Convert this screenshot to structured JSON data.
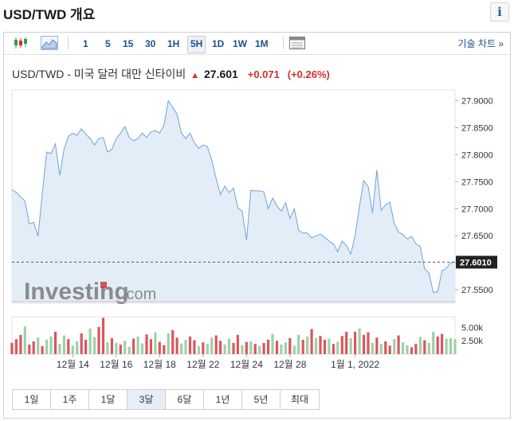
{
  "page": {
    "title": "USD/TWD 개요",
    "info_icon": "i"
  },
  "toolbar": {
    "icons": [
      "candlestick-icon",
      "area-chart-icon"
    ],
    "intervals": [
      "1",
      "5",
      "15",
      "30",
      "1H",
      "5H",
      "1D",
      "1W",
      "1M"
    ],
    "active_interval": "5H",
    "table_icon": "table-icon",
    "tech_chart_label": "기술 차트 »"
  },
  "quote": {
    "pair": "USD/TWD - 미국 달러 대만 신타이비",
    "arrow": "▲",
    "price": "27.601",
    "change": "+0.071",
    "change_pct": "(+0.26%)",
    "direction_color": "#d32f2f"
  },
  "watermark": {
    "brand": "Investing",
    "suffix": ".com"
  },
  "chart_data": {
    "type": "area",
    "colors": {
      "line": "#6fa3d8",
      "fill": "#e3edf7",
      "up": "#9fd0a8",
      "down": "#d9575e"
    },
    "ylim": [
      27.525,
      27.92
    ],
    "y_ticks": [
      "27.9000",
      "27.8500",
      "27.8000",
      "27.7500",
      "27.7000",
      "27.6500",
      "27.6000",
      "27.5500"
    ],
    "y_tick_values": [
      27.9,
      27.85,
      27.8,
      27.75,
      27.7,
      27.65,
      27.6,
      27.55
    ],
    "last_value_label": "27.6010",
    "last_value": 27.601,
    "x_labels": [
      "12월 14",
      "12월 16",
      "12월 18",
      "12월 22",
      "12월 24",
      "12월 28",
      "1월 1, 2022"
    ],
    "x_label_index": [
      14,
      24,
      34,
      44,
      54,
      64,
      79
    ],
    "values": [
      27.735,
      27.73,
      27.722,
      27.714,
      27.672,
      27.675,
      27.649,
      27.73,
      27.805,
      27.802,
      27.82,
      27.762,
      27.81,
      27.834,
      27.84,
      27.836,
      27.848,
      27.838,
      27.83,
      27.818,
      27.83,
      27.832,
      27.805,
      27.81,
      27.83,
      27.84,
      27.852,
      27.832,
      27.826,
      27.83,
      27.84,
      27.832,
      27.842,
      27.845,
      27.84,
      27.855,
      27.9,
      27.888,
      27.875,
      27.84,
      27.83,
      27.84,
      27.822,
      27.812,
      27.818,
      27.815,
      27.79,
      27.756,
      27.726,
      27.742,
      27.73,
      27.738,
      27.702,
      27.695,
      27.642,
      27.734,
      27.733,
      27.733,
      27.731,
      27.7,
      27.72,
      27.705,
      27.696,
      27.711,
      27.682,
      27.7,
      27.66,
      27.655,
      27.655,
      27.646,
      27.65,
      27.653,
      27.647,
      27.64,
      27.635,
      27.62,
      27.64,
      27.632,
      27.616,
      27.65,
      27.705,
      27.752,
      27.741,
      27.692,
      27.772,
      27.697,
      27.707,
      27.712,
      27.673,
      27.657,
      27.652,
      27.644,
      27.649,
      27.635,
      27.63,
      27.589,
      27.581,
      27.545,
      27.546,
      27.585,
      27.59,
      27.6,
      27.601
    ],
    "volume_ticks": [
      "5.00k",
      "2.50k"
    ],
    "volume_tick_values": [
      5000,
      2500
    ],
    "volume_max": 7000,
    "volume": [
      2100,
      2800,
      3600,
      5200,
      1800,
      2400,
      3100,
      1500,
      2700,
      3300,
      4200,
      1900,
      3500,
      2800,
      1600,
      2400,
      3900,
      2700,
      4800,
      3200,
      5100,
      6800,
      2200,
      3000,
      2100,
      1800,
      2500,
      1400,
      2900,
      3300,
      2000,
      3700,
      2800,
      4100,
      2300,
      1700,
      3900,
      4500,
      3100,
      2000,
      2700,
      3300,
      2600,
      1500,
      2200,
      1900,
      3100,
      3500,
      2500,
      1800,
      2900,
      2100,
      3600,
      1700,
      2300,
      2400,
      1900,
      1500,
      2100,
      2700,
      3800,
      2500,
      1800,
      2200,
      3000,
      1600,
      3600,
      2700,
      3300,
      4700,
      3000,
      3400,
      2700,
      2900,
      1900,
      2300,
      3400,
      4200,
      3000,
      4200,
      4800,
      3600,
      4100,
      2100,
      3100,
      1900,
      2400,
      1600,
      2800,
      3500,
      2200,
      1700,
      1300,
      1900,
      3200,
      2600,
      2100,
      4200,
      3300,
      3800,
      2900,
      3000,
      2800
    ],
    "volume_dir": [
      "d",
      "d",
      "d",
      "u",
      "d",
      "d",
      "u",
      "d",
      "u",
      "u",
      "d",
      "u",
      "u",
      "d",
      "u",
      "u",
      "d",
      "d",
      "u",
      "u",
      "d",
      "d",
      "u",
      "d",
      "u",
      "d",
      "u",
      "u",
      "d",
      "u",
      "u",
      "d",
      "d",
      "u",
      "d",
      "d",
      "u",
      "d",
      "d",
      "u",
      "u",
      "d",
      "d",
      "u",
      "d",
      "u",
      "u",
      "d",
      "d",
      "u",
      "u",
      "d",
      "d",
      "u",
      "d",
      "u",
      "d",
      "u",
      "d",
      "d",
      "u",
      "d",
      "u",
      "u",
      "d",
      "u",
      "u",
      "d",
      "u",
      "d",
      "u",
      "d",
      "d",
      "u",
      "d",
      "u",
      "d",
      "d",
      "u",
      "d",
      "u",
      "d",
      "d",
      "u",
      "d",
      "u",
      "d",
      "d",
      "u",
      "d",
      "u",
      "u",
      "d",
      "d",
      "u",
      "d",
      "u",
      "u",
      "d",
      "d",
      "u",
      "u",
      "u"
    ]
  },
  "range_buttons": [
    "1일",
    "1주",
    "1달",
    "3달",
    "6달",
    "1년",
    "5년",
    "최대"
  ],
  "active_range": "3달"
}
